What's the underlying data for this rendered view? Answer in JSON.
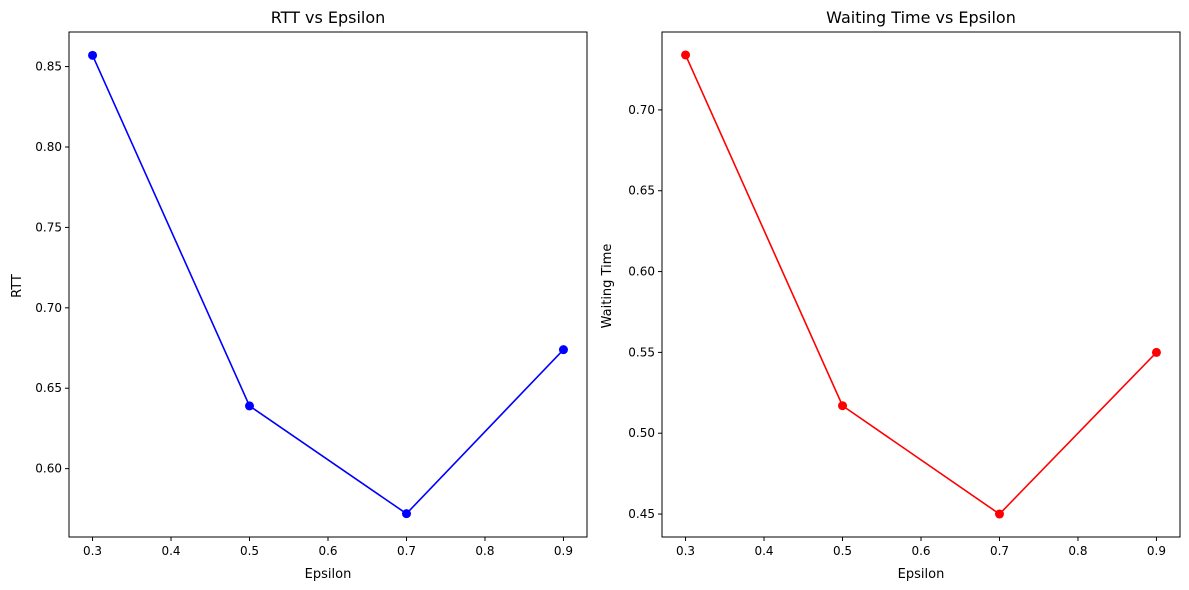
{
  "chart_data": [
    {
      "type": "line",
      "title": "RTT vs Epsilon",
      "xlabel": "Epsilon",
      "ylabel": "RTT",
      "x": [
        0.3,
        0.5,
        0.7,
        0.9
      ],
      "series": [
        {
          "values": [
            0.857,
            0.639,
            0.572,
            0.674
          ],
          "color": "#0000ff",
          "marker": "circle"
        }
      ],
      "xlim": [
        0.27,
        0.93
      ],
      "ylim": [
        0.5575,
        0.8715
      ],
      "xticks": [
        "0.3",
        "0.4",
        "0.5",
        "0.6",
        "0.7",
        "0.8",
        "0.9"
      ],
      "yticks": [
        "0.60",
        "0.65",
        "0.70",
        "0.75",
        "0.80",
        "0.85"
      ],
      "grid": false,
      "legend": "none"
    },
    {
      "type": "line",
      "title": "Waiting Time vs Epsilon",
      "xlabel": "Epsilon",
      "ylabel": "Waiting Time",
      "x": [
        0.3,
        0.5,
        0.7,
        0.9
      ],
      "series": [
        {
          "values": [
            0.734,
            0.517,
            0.45,
            0.55
          ],
          "color": "#ff0000",
          "marker": "circle"
        }
      ],
      "xlim": [
        0.27,
        0.93
      ],
      "ylim": [
        0.4358,
        0.7482
      ],
      "xticks": [
        "0.3",
        "0.4",
        "0.5",
        "0.6",
        "0.7",
        "0.8",
        "0.9"
      ],
      "yticks": [
        "0.45",
        "0.50",
        "0.55",
        "0.60",
        "0.65",
        "0.70"
      ],
      "grid": false,
      "legend": "none"
    }
  ]
}
